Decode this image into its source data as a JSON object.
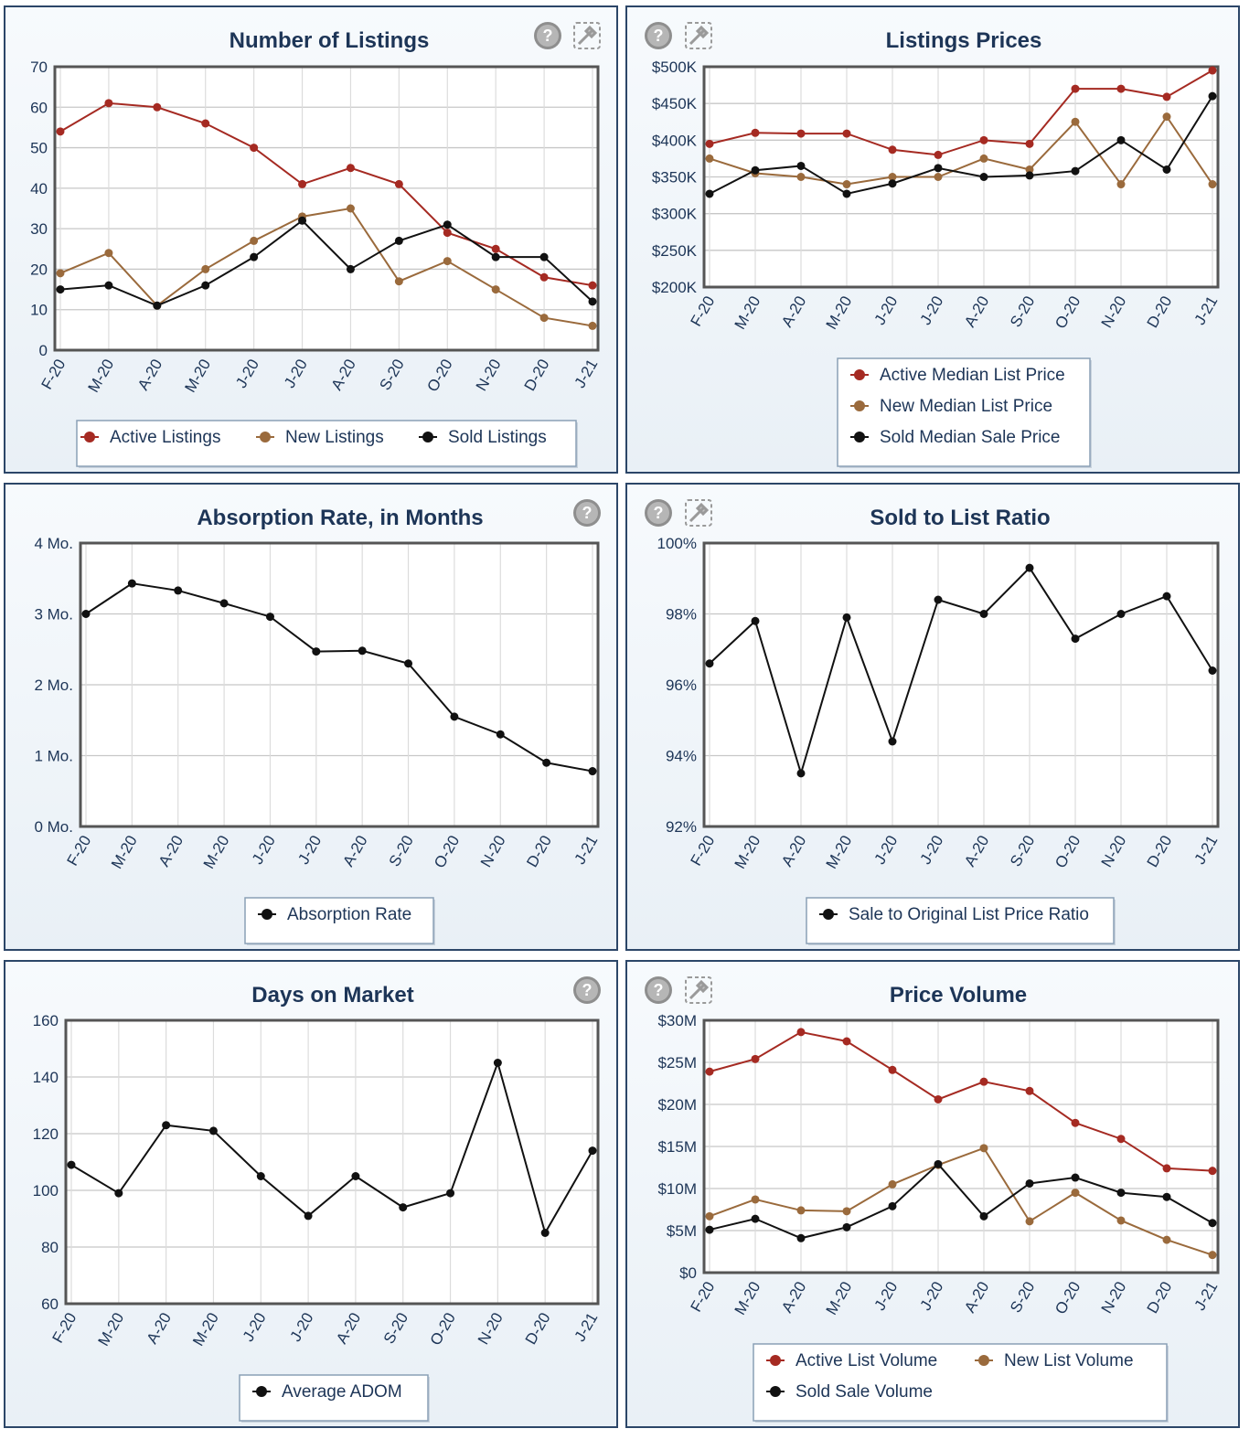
{
  "colors": {
    "active": "#a52a22",
    "new": "#9a6a3c",
    "sold": "#111111",
    "text": "#1d3557",
    "grid": "#c7c7c7",
    "frame": "#555555"
  },
  "icons": {
    "help": "help-icon",
    "settings": "settings-icon"
  },
  "chart_data": [
    {
      "id": "listings",
      "type": "line",
      "title": "Number of Listings",
      "categories": [
        "F-20",
        "M-20",
        "A-20",
        "M-20",
        "J-20",
        "J-20",
        "A-20",
        "S-20",
        "O-20",
        "N-20",
        "D-20",
        "J-21"
      ],
      "ylim": [
        0,
        70
      ],
      "yticks": [
        0,
        10,
        20,
        30,
        40,
        50,
        60,
        70
      ],
      "ytick_labels": [
        "0",
        "10",
        "20",
        "30",
        "40",
        "50",
        "60",
        "70"
      ],
      "grid": true,
      "legend_position": "bottom",
      "series": [
        {
          "name": "Active Listings",
          "color": "#a52a22",
          "values": [
            54,
            61,
            60,
            56,
            50,
            41,
            45,
            41,
            29,
            25,
            18,
            16
          ]
        },
        {
          "name": "New Listings",
          "color": "#9a6a3c",
          "values": [
            19,
            24,
            11,
            20,
            27,
            33,
            35,
            17,
            22,
            15,
            8,
            6
          ]
        },
        {
          "name": "Sold Listings",
          "color": "#111111",
          "values": [
            15,
            16,
            11,
            16,
            23,
            32,
            20,
            27,
            31,
            23,
            23,
            12
          ]
        }
      ]
    },
    {
      "id": "prices",
      "type": "line",
      "title": "Listings Prices",
      "categories": [
        "F-20",
        "M-20",
        "A-20",
        "M-20",
        "J-20",
        "J-20",
        "A-20",
        "S-20",
        "O-20",
        "N-20",
        "D-20",
        "J-21"
      ],
      "ylim": [
        200000,
        500000
      ],
      "yticks": [
        200000,
        250000,
        300000,
        350000,
        400000,
        450000,
        500000
      ],
      "ytick_labels": [
        "$200K",
        "$250K",
        "$300K",
        "$350K",
        "$400K",
        "$450K",
        "$500K"
      ],
      "grid": true,
      "legend_position": "bottom",
      "series": [
        {
          "name": "Active Median List Price",
          "color": "#a52a22",
          "values": [
            395000,
            410000,
            409000,
            409000,
            387000,
            380000,
            400000,
            395000,
            470000,
            470000,
            459000,
            495000
          ]
        },
        {
          "name": "New Median List Price",
          "color": "#9a6a3c",
          "values": [
            375000,
            355000,
            350000,
            340000,
            350000,
            350000,
            375000,
            360000,
            425000,
            340000,
            432000,
            340000
          ]
        },
        {
          "name": "Sold Median Sale Price",
          "color": "#111111",
          "values": [
            327000,
            359000,
            365000,
            327000,
            341000,
            362000,
            350000,
            352000,
            358000,
            400000,
            360000,
            460000
          ]
        }
      ]
    },
    {
      "id": "absorption",
      "type": "line",
      "title": "Absorption Rate, in Months",
      "categories": [
        "F-20",
        "M-20",
        "A-20",
        "M-20",
        "J-20",
        "J-20",
        "A-20",
        "S-20",
        "O-20",
        "N-20",
        "D-20",
        "J-21"
      ],
      "ylim": [
        0,
        4
      ],
      "yticks": [
        0,
        1,
        2,
        3,
        4
      ],
      "ytick_labels": [
        "0 Mo.",
        "1 Mo.",
        "2 Mo.",
        "3 Mo.",
        "4 Mo."
      ],
      "grid": true,
      "legend_position": "bottom",
      "series": [
        {
          "name": "Absorption Rate",
          "color": "#111111",
          "values": [
            3.0,
            3.43,
            3.33,
            3.15,
            2.96,
            2.47,
            2.48,
            2.3,
            1.55,
            1.3,
            0.9,
            0.78
          ]
        }
      ]
    },
    {
      "id": "ratio",
      "type": "line",
      "title": "Sold to List Ratio",
      "categories": [
        "F-20",
        "M-20",
        "A-20",
        "M-20",
        "J-20",
        "J-20",
        "A-20",
        "S-20",
        "O-20",
        "N-20",
        "D-20",
        "J-21"
      ],
      "ylim": [
        92,
        100
      ],
      "yticks": [
        92,
        94,
        96,
        98,
        100
      ],
      "ytick_labels": [
        "92%",
        "94%",
        "96%",
        "98%",
        "100%"
      ],
      "grid": true,
      "legend_position": "bottom",
      "series": [
        {
          "name": "Sale to Original List Price Ratio",
          "color": "#111111",
          "values": [
            96.6,
            97.8,
            93.5,
            97.9,
            94.4,
            98.4,
            98.0,
            99.3,
            97.3,
            98.0,
            98.5,
            96.4
          ]
        }
      ]
    },
    {
      "id": "dom",
      "type": "line",
      "title": "Days on Market",
      "categories": [
        "F-20",
        "M-20",
        "A-20",
        "M-20",
        "J-20",
        "J-20",
        "A-20",
        "S-20",
        "O-20",
        "N-20",
        "D-20",
        "J-21"
      ],
      "ylim": [
        60,
        160
      ],
      "yticks": [
        60,
        80,
        100,
        120,
        140,
        160
      ],
      "ytick_labels": [
        "60",
        "80",
        "100",
        "120",
        "140",
        "160"
      ],
      "grid": true,
      "legend_position": "bottom",
      "series": [
        {
          "name": "Average ADOM",
          "color": "#111111",
          "values": [
            109,
            99,
            123,
            121,
            105,
            91,
            105,
            94,
            99,
            145,
            85,
            114
          ]
        }
      ]
    },
    {
      "id": "volume",
      "type": "line",
      "title": "Price Volume",
      "categories": [
        "F-20",
        "M-20",
        "A-20",
        "M-20",
        "J-20",
        "J-20",
        "A-20",
        "S-20",
        "O-20",
        "N-20",
        "D-20",
        "J-21"
      ],
      "ylim": [
        0,
        30000000
      ],
      "yticks": [
        0,
        5000000,
        10000000,
        15000000,
        20000000,
        25000000,
        30000000
      ],
      "ytick_labels": [
        "$0",
        "$5M",
        "$10M",
        "$15M",
        "$20M",
        "$25M",
        "$30M"
      ],
      "grid": true,
      "legend_position": "bottom",
      "series": [
        {
          "name": "Active List Volume",
          "color": "#a52a22",
          "values": [
            23900000,
            25400000,
            28600000,
            27500000,
            24100000,
            20600000,
            22700000,
            21600000,
            17800000,
            15900000,
            12400000,
            12100000
          ]
        },
        {
          "name": "New List Volume",
          "color": "#9a6a3c",
          "values": [
            6700000,
            8700000,
            7400000,
            7300000,
            10500000,
            12800000,
            14800000,
            6100000,
            9500000,
            6200000,
            3900000,
            2100000
          ]
        },
        {
          "name": "Sold Sale Volume",
          "color": "#111111",
          "values": [
            5100000,
            6400000,
            4100000,
            5400000,
            7900000,
            12900000,
            6700000,
            10600000,
            11300000,
            9500000,
            9000000,
            5900000
          ]
        }
      ]
    }
  ]
}
